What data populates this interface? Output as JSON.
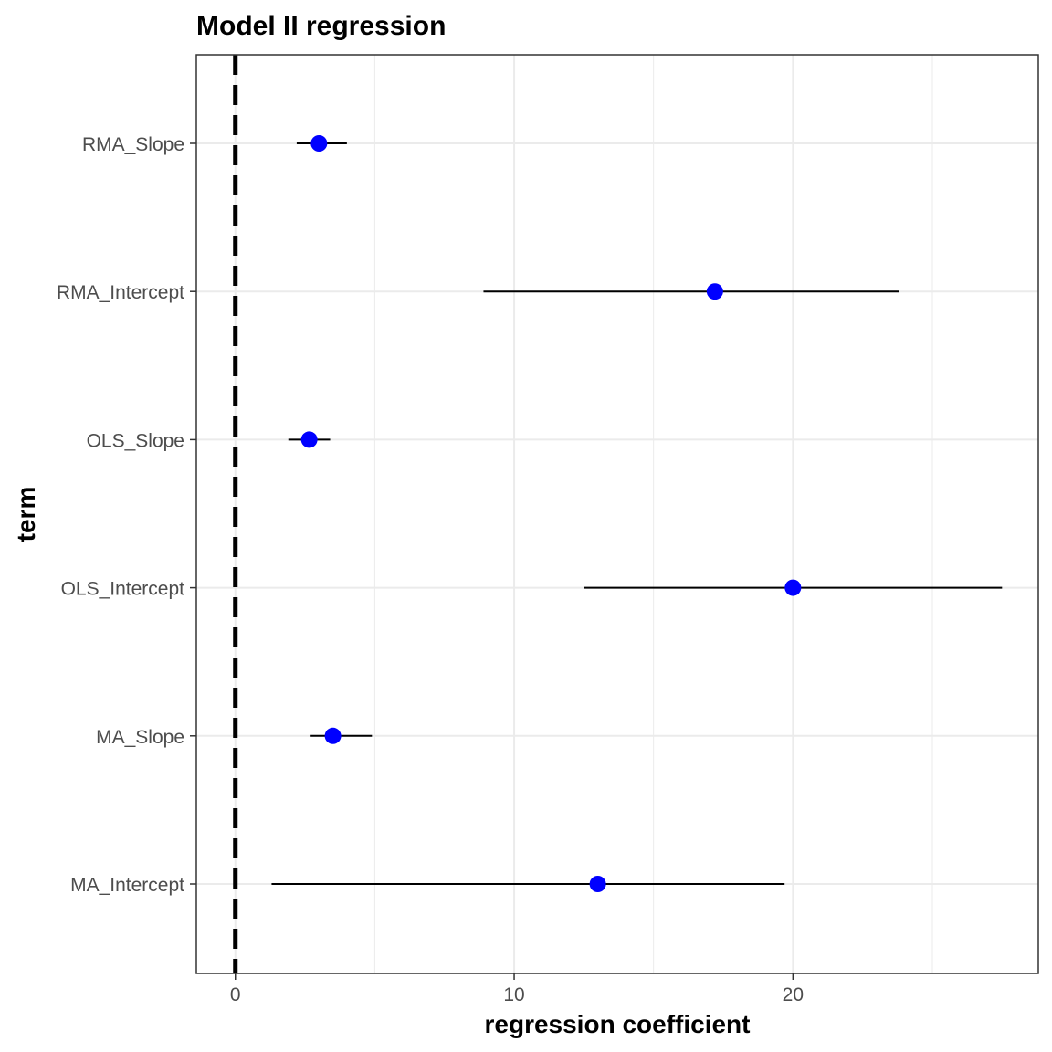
{
  "chart_data": {
    "type": "scatter",
    "title": "Model II regression",
    "xlabel": "regression coefficient",
    "ylabel": "term",
    "xlim": [
      -1.4,
      28.8
    ],
    "x_ticks": [
      0,
      10,
      20
    ],
    "x_minor_ticks": [
      5,
      15,
      25
    ],
    "reference_line": {
      "x": 0,
      "style": "dashed",
      "color": "#000000"
    },
    "grid": true,
    "legend": "none",
    "point_color": "#0000ff",
    "categories": [
      "MA_Intercept",
      "MA_Slope",
      "OLS_Intercept",
      "OLS_Slope",
      "RMA_Intercept",
      "RMA_Slope"
    ],
    "points": [
      {
        "term": "MA_Intercept",
        "estimate": 13.0,
        "low": 1.3,
        "high": 19.7
      },
      {
        "term": "MA_Slope",
        "estimate": 3.5,
        "low": 2.7,
        "high": 4.9
      },
      {
        "term": "OLS_Intercept",
        "estimate": 20.0,
        "low": 12.5,
        "high": 27.5
      },
      {
        "term": "OLS_Slope",
        "estimate": 2.65,
        "low": 1.9,
        "high": 3.4
      },
      {
        "term": "RMA_Intercept",
        "estimate": 17.2,
        "low": 8.9,
        "high": 23.8
      },
      {
        "term": "RMA_Slope",
        "estimate": 3.0,
        "low": 2.2,
        "high": 4.0
      }
    ]
  }
}
